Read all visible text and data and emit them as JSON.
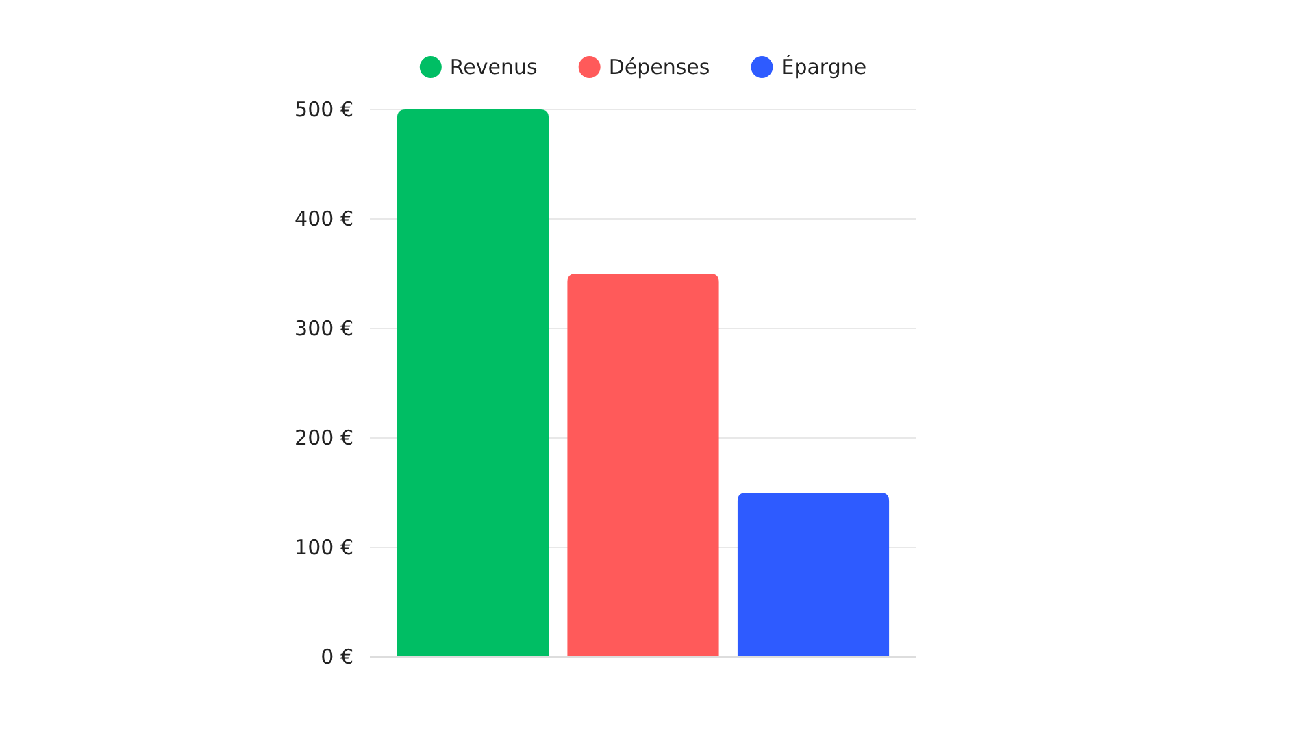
{
  "chart_data": {
    "type": "bar",
    "categories": [
      null
    ],
    "series": [
      {
        "name": "Revenus",
        "color": "#00be64",
        "values": [
          500
        ]
      },
      {
        "name": "Dépenses",
        "color": "#ff5a5a",
        "values": [
          350
        ]
      },
      {
        "name": "Épargne",
        "color": "#2e5bff",
        "values": [
          150
        ]
      }
    ],
    "ylim": [
      0,
      500
    ],
    "yticks": [
      {
        "value": 0,
        "label": "0 €"
      },
      {
        "value": 100,
        "label": "100 €"
      },
      {
        "value": 200,
        "label": "200 €"
      },
      {
        "value": 300,
        "label": "300 €"
      },
      {
        "value": 400,
        "label": "400 €"
      },
      {
        "value": 500,
        "label": "500 €"
      }
    ],
    "grid": "y",
    "legend": "top"
  }
}
